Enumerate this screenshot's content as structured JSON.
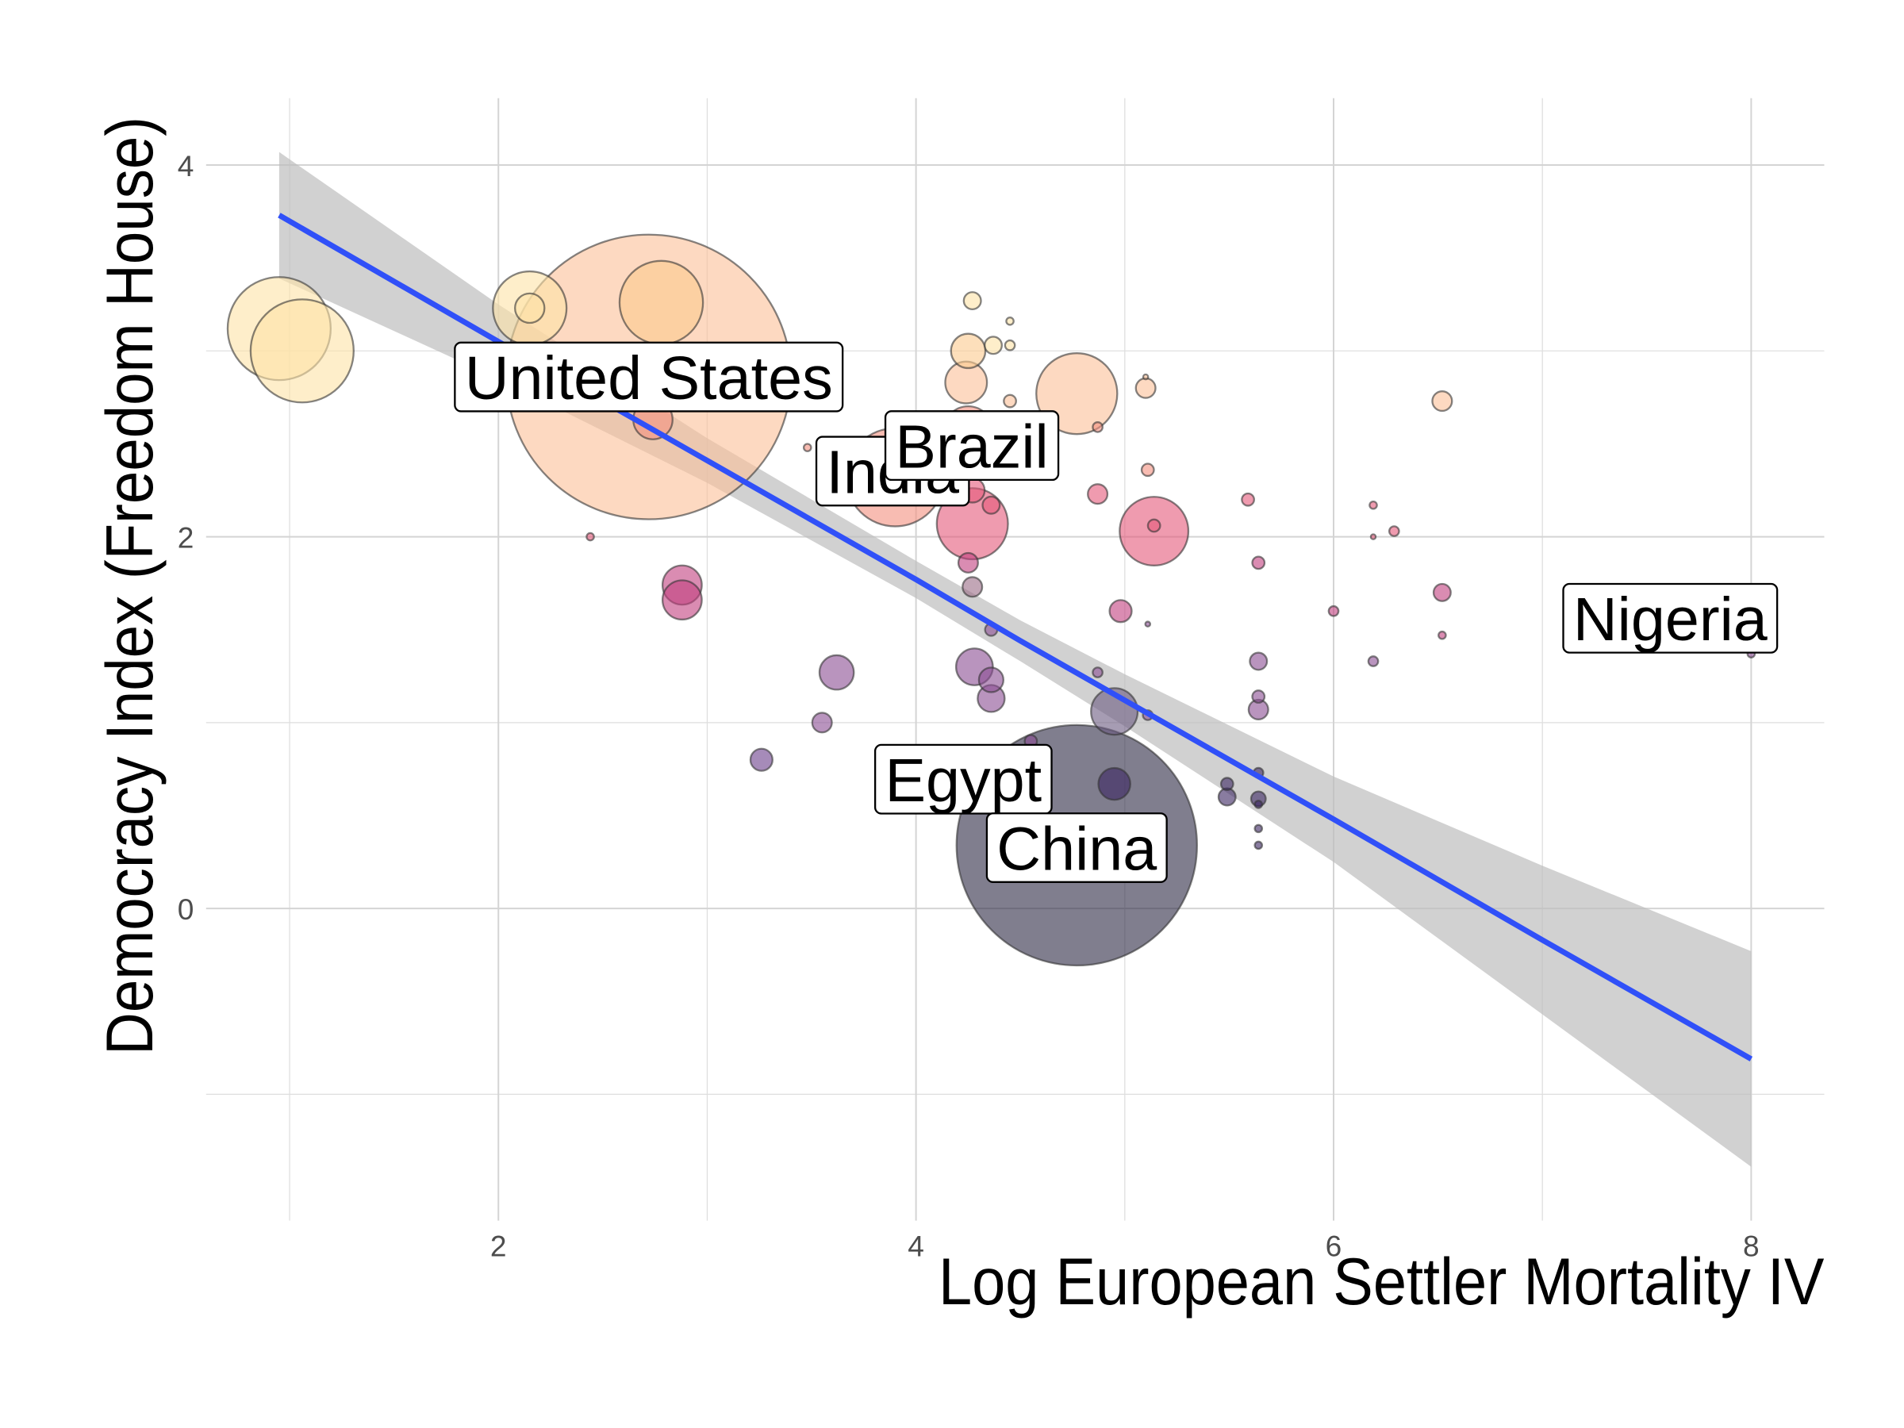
{
  "chart_data": {
    "type": "scatter",
    "x_label": "Log European Settler Mortality IV",
    "y_label": "Democracy Index (Freedom House)",
    "xlim": [
      0.6,
      8.35
    ],
    "ylim": [
      -1.68,
      4.36
    ],
    "xticks": [
      2,
      4,
      6,
      8
    ],
    "yticks": [
      0,
      2,
      4
    ],
    "minor_xticks": [
      1,
      3,
      5,
      7
    ],
    "minor_yticks": [
      -1,
      1,
      3
    ],
    "grid": true,
    "series": [
      {
        "x": [
          0.95,
          1.06,
          2.15,
          2.15,
          2.72,
          2.78,
          2.74,
          2.44,
          2.88,
          2.88,
          3.26,
          3.55,
          3.62,
          3.9,
          4.27,
          4.25,
          4.24,
          4.37,
          4.45,
          4.45,
          4.25,
          4.45,
          4.27,
          4.27,
          4.36,
          4.25,
          4.27,
          4.36,
          4.28,
          4.36,
          4.36,
          4.55,
          4.77,
          4.95,
          4.95,
          4.77,
          4.87,
          4.87,
          4.87,
          4.98,
          5.1,
          5.1,
          5.11,
          5.14,
          5.14,
          5.11,
          5.11,
          5.49,
          5.49,
          5.59,
          5.64,
          5.64,
          5.64,
          5.64,
          5.64,
          5.64,
          5.64,
          5.64,
          5.64,
          6.0,
          6.19,
          6.19,
          6.19,
          6.29,
          6.52,
          6.52,
          6.52,
          8.0,
          3.48
        ],
        "y": [
          3.12,
          3.0,
          3.23,
          3.23,
          2.86,
          3.26,
          2.63,
          2.0,
          1.74,
          1.66,
          0.8,
          1.0,
          1.27,
          2.32,
          3.27,
          3.0,
          2.83,
          3.03,
          3.16,
          3.03,
          2.57,
          2.73,
          2.07,
          2.25,
          2.17,
          1.86,
          1.73,
          1.5,
          1.3,
          1.23,
          1.13,
          0.9,
          0.34,
          0.67,
          1.06,
          2.77,
          2.59,
          2.23,
          1.27,
          1.6,
          2.8,
          2.86,
          2.36,
          2.03,
          2.06,
          1.53,
          1.04,
          0.67,
          0.6,
          2.2,
          1.86,
          1.33,
          1.14,
          1.07,
          0.73,
          0.59,
          0.56,
          0.43,
          0.34,
          1.6,
          2.17,
          2.0,
          1.33,
          2.03,
          2.73,
          1.7,
          1.47,
          1.37,
          2.48
        ],
        "sizes": [
          17.64,
          17.64,
          9,
          1.44,
          134.56,
          11.56,
          2.56,
          0.09,
          2.56,
          2.56,
          0.81,
          0.64,
          1.96,
          16,
          0.49,
          1.96,
          2.89,
          0.49,
          0.09,
          0.16,
          4,
          0.25,
          8.41,
          1,
          0.49,
          0.64,
          0.64,
          0.25,
          2.25,
          1,
          1.21,
          0.25,
          96.04,
          1.69,
          3.61,
          10.89,
          0.16,
          0.64,
          0.16,
          0.81,
          0.64,
          0.04,
          0.25,
          7.84,
          0.25,
          0.04,
          0.16,
          0.25,
          0.49,
          0.25,
          0.25,
          0.49,
          0.25,
          0.64,
          0.16,
          0.36,
          0.09,
          0.09,
          0.09,
          0.16,
          0.09,
          0.04,
          0.16,
          0.16,
          0.64,
          0.49,
          0.09,
          0.09,
          0.09
        ],
        "colors": [
          "#fde3a7",
          "#fde3a7",
          "#fde3a7",
          "#fde3a7",
          "#fcbf98",
          "#fcc98d",
          "#f4907f",
          "#e4587a",
          "#c13f7f",
          "#c13f7f",
          "#6a3d8a",
          "#8a4d93",
          "#8a4d93",
          "#f4907f",
          "#fde3a7",
          "#fcc98d",
          "#fcbf98",
          "#fde3a7",
          "#fde3a7",
          "#fde3a7",
          "#f4907f",
          "#fcbf98",
          "#e4587a",
          "#e4587a",
          "#e4587a",
          "#c13f7f",
          "#9a6a86",
          "#8a4d93",
          "#8a4d93",
          "#8a4d93",
          "#8a4d93",
          "#8a4d93",
          "#2c2842",
          "#3b2560",
          "#6b5a80",
          "#fcbf98",
          "#f4907f",
          "#e4587a",
          "#8a4d93",
          "#c13f7f",
          "#fcbf98",
          "#fcbf98",
          "#f4907f",
          "#e4587a",
          "#e4587a",
          "#8a4d93",
          "#8a4d93",
          "#3b2560",
          "#3b2560",
          "#e4587a",
          "#c13f7f",
          "#8a4d93",
          "#8a4d93",
          "#8a4d93",
          "#3b2560",
          "#3b2560",
          "#3b2560",
          "#3b2560",
          "#3b2560",
          "#c13f7f",
          "#e4587a",
          "#e4587a",
          "#8a4d93",
          "#e4587a",
          "#fcbf98",
          "#c13f7f",
          "#c13f7f",
          "#8a4d93",
          "#f4907f"
        ],
        "labels": [
          null,
          null,
          null,
          null,
          "United States",
          null,
          null,
          null,
          null,
          null,
          null,
          null,
          null,
          "India",
          null,
          null,
          null,
          null,
          null,
          null,
          "Brazil",
          null,
          null,
          null,
          null,
          null,
          null,
          null,
          null,
          null,
          null,
          "Egypt",
          "China",
          null,
          null,
          null,
          null,
          null,
          null,
          null,
          null,
          null,
          null,
          null,
          null,
          null,
          null,
          null,
          null,
          null,
          null,
          null,
          null,
          null,
          null,
          null,
          null,
          null,
          null,
          null,
          null,
          null,
          null,
          null,
          null,
          null,
          null,
          "Nigeria",
          null
        ]
      }
    ],
    "fit": {
      "color": "#3050f8",
      "band_color": "#bdbdbd",
      "x": [
        0.95,
        2,
        3,
        4,
        4.5,
        5,
        6,
        7,
        8
      ],
      "y": [
        3.73,
        3.05,
        2.41,
        1.77,
        1.44,
        1.12,
        0.48,
        -0.17,
        -0.81
      ],
      "lower": [
        3.39,
        2.85,
        2.29,
        1.67,
        1.33,
        0.98,
        0.25,
        -0.57,
        -1.39
      ],
      "upper": [
        4.07,
        3.25,
        2.53,
        1.87,
        1.55,
        1.26,
        0.71,
        0.23,
        -0.23
      ]
    }
  }
}
